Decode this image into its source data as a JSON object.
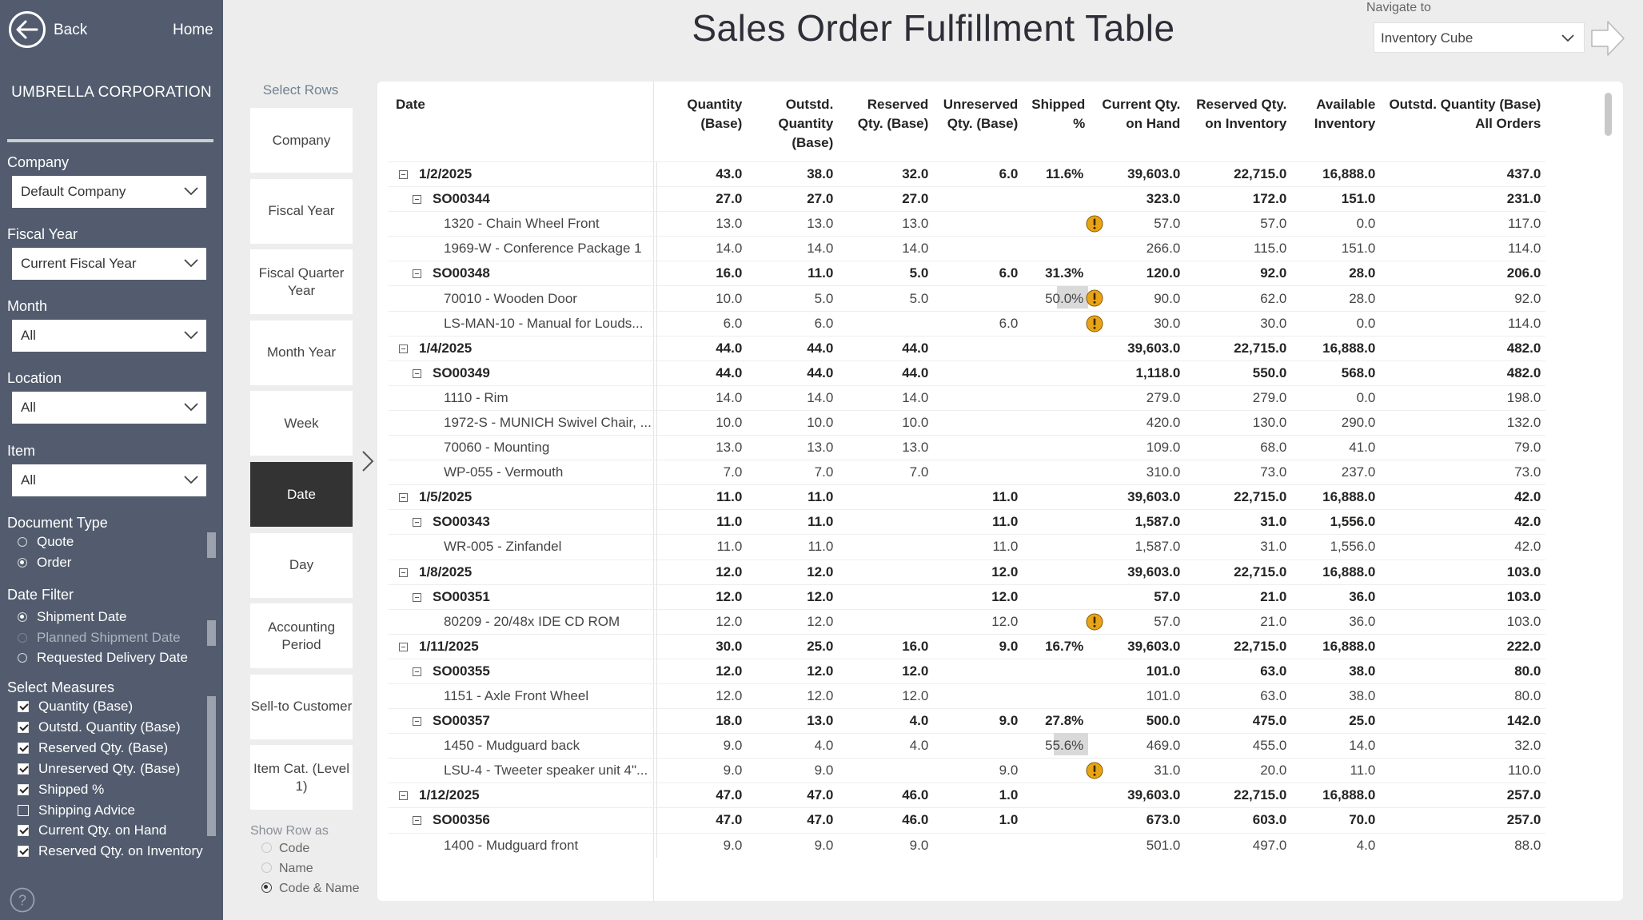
{
  "sidebar": {
    "back_label": "Back",
    "home_label": "Home",
    "company_name": "UMBRELLA CORPORATION",
    "filters": {
      "company": {
        "label": "Company",
        "value": "Default Company"
      },
      "fiscal_year": {
        "label": "Fiscal Year",
        "value": "Current Fiscal Year"
      },
      "month": {
        "label": "Month",
        "value": "All"
      },
      "location": {
        "label": "Location",
        "value": "All"
      },
      "item": {
        "label": "Item",
        "value": "All"
      }
    },
    "document_type": {
      "label": "Document Type",
      "options": [
        "Quote",
        "Order"
      ],
      "selected": "Order"
    },
    "date_filter": {
      "label": "Date Filter",
      "options": [
        "Shipment Date",
        "Planned Shipment Date",
        "Requested Delivery Date"
      ],
      "selected": "Shipment Date"
    },
    "measures": {
      "label": "Select Measures",
      "items": [
        {
          "label": "Quantity (Base)",
          "checked": true
        },
        {
          "label": "Outstd. Quantity (Base)",
          "checked": true
        },
        {
          "label": "Reserved Qty. (Base)",
          "checked": true
        },
        {
          "label": "Unreserved Qty. (Base)",
          "checked": true
        },
        {
          "label": "Shipped %",
          "checked": true
        },
        {
          "label": "Shipping Advice",
          "checked": false
        },
        {
          "label": "Current Qty. on Hand",
          "checked": true
        },
        {
          "label": "Reserved Qty. on Inventory",
          "checked": true
        }
      ]
    }
  },
  "header": {
    "title": "Sales Order Fulfillment Table",
    "navigate_label": "Navigate to",
    "navigate_value": "Inventory Cube"
  },
  "row_selector": {
    "label": "Select Rows",
    "buttons": [
      "Company",
      "Fiscal Year",
      "Fiscal Quarter Year",
      "Month Year",
      "Week",
      "Date",
      "Day",
      "Accounting Period",
      "Sell-to Customer",
      "Item Cat. (Level 1)"
    ],
    "active": "Date",
    "show_row_as": {
      "label": "Show Row as",
      "options": [
        "Code",
        "Name",
        "Code & Name"
      ],
      "selected": "Code & Name"
    }
  },
  "table": {
    "columns": [
      "Date",
      "Quantity (Base)",
      "Outstd. Quantity (Base)",
      "Reserved Qty. (Base)",
      "Unreserved Qty. (Base)",
      "Shipped %",
      "Current Qty. on Hand",
      "Reserved Qty. on Inventory",
      "Available Inventory",
      "Outstd. Quantity (Base) All Orders"
    ],
    "rows": [
      {
        "level": 0,
        "label": "1/2/2025",
        "qty": "43.0",
        "outstd": "38.0",
        "reserved": "32.0",
        "unreserved": "6.0",
        "shipped": "11.6%",
        "shipped_pct": 11.6,
        "warn": false,
        "on_hand": "39,603.0",
        "res_inv": "22,715.0",
        "avail": "16,888.0",
        "all_orders": "437.0"
      },
      {
        "level": 1,
        "label": "SO00344",
        "qty": "27.0",
        "outstd": "27.0",
        "reserved": "27.0",
        "unreserved": "",
        "shipped": "",
        "shipped_pct": null,
        "warn": false,
        "on_hand": "323.0",
        "res_inv": "172.0",
        "avail": "151.0",
        "all_orders": "231.0"
      },
      {
        "level": 2,
        "label": "1320 - Chain Wheel Front",
        "qty": "13.0",
        "outstd": "13.0",
        "reserved": "13.0",
        "unreserved": "",
        "shipped": "",
        "shipped_pct": null,
        "warn": true,
        "on_hand": "57.0",
        "res_inv": "57.0",
        "avail": "0.0",
        "all_orders": "117.0"
      },
      {
        "level": 2,
        "label": "1969-W - Conference Package 1",
        "qty": "14.0",
        "outstd": "14.0",
        "reserved": "14.0",
        "unreserved": "",
        "shipped": "",
        "shipped_pct": null,
        "warn": false,
        "on_hand": "266.0",
        "res_inv": "115.0",
        "avail": "151.0",
        "all_orders": "114.0"
      },
      {
        "level": 1,
        "label": "SO00348",
        "qty": "16.0",
        "outstd": "11.0",
        "reserved": "5.0",
        "unreserved": "6.0",
        "shipped": "31.3%",
        "shipped_pct": null,
        "warn": false,
        "on_hand": "120.0",
        "res_inv": "92.0",
        "avail": "28.0",
        "all_orders": "206.0"
      },
      {
        "level": 2,
        "label": "70010 - Wooden Door",
        "qty": "10.0",
        "outstd": "5.0",
        "reserved": "5.0",
        "unreserved": "",
        "shipped": "50.0%",
        "shipped_pct": 50.0,
        "warn": true,
        "on_hand": "90.0",
        "res_inv": "62.0",
        "avail": "28.0",
        "all_orders": "92.0"
      },
      {
        "level": 2,
        "label": "LS-MAN-10 - Manual for Louds...",
        "qty": "6.0",
        "outstd": "6.0",
        "reserved": "",
        "unreserved": "6.0",
        "shipped": "",
        "shipped_pct": null,
        "warn": true,
        "on_hand": "30.0",
        "res_inv": "30.0",
        "avail": "0.0",
        "all_orders": "114.0"
      },
      {
        "level": 0,
        "label": "1/4/2025",
        "qty": "44.0",
        "outstd": "44.0",
        "reserved": "44.0",
        "unreserved": "",
        "shipped": "",
        "shipped_pct": null,
        "warn": false,
        "on_hand": "39,603.0",
        "res_inv": "22,715.0",
        "avail": "16,888.0",
        "all_orders": "482.0"
      },
      {
        "level": 1,
        "label": "SO00349",
        "qty": "44.0",
        "outstd": "44.0",
        "reserved": "44.0",
        "unreserved": "",
        "shipped": "",
        "shipped_pct": null,
        "warn": false,
        "on_hand": "1,118.0",
        "res_inv": "550.0",
        "avail": "568.0",
        "all_orders": "482.0"
      },
      {
        "level": 2,
        "label": "1110 - Rim",
        "qty": "14.0",
        "outstd": "14.0",
        "reserved": "14.0",
        "unreserved": "",
        "shipped": "",
        "shipped_pct": null,
        "warn": false,
        "on_hand": "279.0",
        "res_inv": "279.0",
        "avail": "0.0",
        "all_orders": "198.0"
      },
      {
        "level": 2,
        "label": "1972-S - MUNICH Swivel Chair, ...",
        "qty": "10.0",
        "outstd": "10.0",
        "reserved": "10.0",
        "unreserved": "",
        "shipped": "",
        "shipped_pct": null,
        "warn": false,
        "on_hand": "420.0",
        "res_inv": "130.0",
        "avail": "290.0",
        "all_orders": "132.0"
      },
      {
        "level": 2,
        "label": "70060 - Mounting",
        "qty": "13.0",
        "outstd": "13.0",
        "reserved": "13.0",
        "unreserved": "",
        "shipped": "",
        "shipped_pct": null,
        "warn": false,
        "on_hand": "109.0",
        "res_inv": "68.0",
        "avail": "41.0",
        "all_orders": "79.0"
      },
      {
        "level": 2,
        "label": "WP-055 - Vermouth",
        "qty": "7.0",
        "outstd": "7.0",
        "reserved": "7.0",
        "unreserved": "",
        "shipped": "",
        "shipped_pct": null,
        "warn": false,
        "on_hand": "310.0",
        "res_inv": "73.0",
        "avail": "237.0",
        "all_orders": "73.0"
      },
      {
        "level": 0,
        "label": "1/5/2025",
        "qty": "11.0",
        "outstd": "11.0",
        "reserved": "",
        "unreserved": "11.0",
        "shipped": "",
        "shipped_pct": null,
        "warn": false,
        "on_hand": "39,603.0",
        "res_inv": "22,715.0",
        "avail": "16,888.0",
        "all_orders": "42.0"
      },
      {
        "level": 1,
        "label": "SO00343",
        "qty": "11.0",
        "outstd": "11.0",
        "reserved": "",
        "unreserved": "11.0",
        "shipped": "",
        "shipped_pct": null,
        "warn": false,
        "on_hand": "1,587.0",
        "res_inv": "31.0",
        "avail": "1,556.0",
        "all_orders": "42.0"
      },
      {
        "level": 2,
        "label": "WR-005 - Zinfandel",
        "qty": "11.0",
        "outstd": "11.0",
        "reserved": "",
        "unreserved": "11.0",
        "shipped": "",
        "shipped_pct": null,
        "warn": false,
        "on_hand": "1,587.0",
        "res_inv": "31.0",
        "avail": "1,556.0",
        "all_orders": "42.0"
      },
      {
        "level": 0,
        "label": "1/8/2025",
        "qty": "12.0",
        "outstd": "12.0",
        "reserved": "",
        "unreserved": "12.0",
        "shipped": "",
        "shipped_pct": null,
        "warn": false,
        "on_hand": "39,603.0",
        "res_inv": "22,715.0",
        "avail": "16,888.0",
        "all_orders": "103.0"
      },
      {
        "level": 1,
        "label": "SO00351",
        "qty": "12.0",
        "outstd": "12.0",
        "reserved": "",
        "unreserved": "12.0",
        "shipped": "",
        "shipped_pct": null,
        "warn": false,
        "on_hand": "57.0",
        "res_inv": "21.0",
        "avail": "36.0",
        "all_orders": "103.0"
      },
      {
        "level": 2,
        "label": "80209 - 20/48x IDE CD ROM",
        "qty": "12.0",
        "outstd": "12.0",
        "reserved": "",
        "unreserved": "12.0",
        "shipped": "",
        "shipped_pct": null,
        "warn": true,
        "on_hand": "57.0",
        "res_inv": "21.0",
        "avail": "36.0",
        "all_orders": "103.0"
      },
      {
        "level": 0,
        "label": "1/11/2025",
        "qty": "30.0",
        "outstd": "25.0",
        "reserved": "16.0",
        "unreserved": "9.0",
        "shipped": "16.7%",
        "shipped_pct": null,
        "warn": false,
        "on_hand": "39,603.0",
        "res_inv": "22,715.0",
        "avail": "16,888.0",
        "all_orders": "222.0"
      },
      {
        "level": 1,
        "label": "SO00355",
        "qty": "12.0",
        "outstd": "12.0",
        "reserved": "12.0",
        "unreserved": "",
        "shipped": "",
        "shipped_pct": null,
        "warn": false,
        "on_hand": "101.0",
        "res_inv": "63.0",
        "avail": "38.0",
        "all_orders": "80.0"
      },
      {
        "level": 2,
        "label": "1151 - Axle Front Wheel",
        "qty": "12.0",
        "outstd": "12.0",
        "reserved": "12.0",
        "unreserved": "",
        "shipped": "",
        "shipped_pct": null,
        "warn": false,
        "on_hand": "101.0",
        "res_inv": "63.0",
        "avail": "38.0",
        "all_orders": "80.0"
      },
      {
        "level": 1,
        "label": "SO00357",
        "qty": "18.0",
        "outstd": "13.0",
        "reserved": "4.0",
        "unreserved": "9.0",
        "shipped": "27.8%",
        "shipped_pct": null,
        "warn": false,
        "on_hand": "500.0",
        "res_inv": "475.0",
        "avail": "25.0",
        "all_orders": "142.0"
      },
      {
        "level": 2,
        "label": "1450 - Mudguard back",
        "qty": "9.0",
        "outstd": "4.0",
        "reserved": "4.0",
        "unreserved": "",
        "shipped": "55.6%",
        "shipped_pct": 55.6,
        "warn": false,
        "on_hand": "469.0",
        "res_inv": "455.0",
        "avail": "14.0",
        "all_orders": "32.0"
      },
      {
        "level": 2,
        "label": "LSU-4 - Tweeter speaker unit 4\"...",
        "qty": "9.0",
        "outstd": "9.0",
        "reserved": "",
        "unreserved": "9.0",
        "shipped": "",
        "shipped_pct": null,
        "warn": true,
        "on_hand": "31.0",
        "res_inv": "20.0",
        "avail": "11.0",
        "all_orders": "110.0"
      },
      {
        "level": 0,
        "label": "1/12/2025",
        "qty": "47.0",
        "outstd": "47.0",
        "reserved": "46.0",
        "unreserved": "1.0",
        "shipped": "",
        "shipped_pct": null,
        "warn": false,
        "on_hand": "39,603.0",
        "res_inv": "22,715.0",
        "avail": "16,888.0",
        "all_orders": "257.0"
      },
      {
        "level": 1,
        "label": "SO00356",
        "qty": "47.0",
        "outstd": "47.0",
        "reserved": "46.0",
        "unreserved": "1.0",
        "shipped": "",
        "shipped_pct": null,
        "warn": false,
        "on_hand": "673.0",
        "res_inv": "603.0",
        "avail": "70.0",
        "all_orders": "257.0"
      },
      {
        "level": 2,
        "label": "1400 - Mudguard front",
        "qty": "9.0",
        "outstd": "9.0",
        "reserved": "9.0",
        "unreserved": "",
        "shipped": "",
        "shipped_pct": null,
        "warn": false,
        "on_hand": "501.0",
        "res_inv": "497.0",
        "avail": "4.0",
        "all_orders": "88.0"
      }
    ]
  },
  "colors": {
    "sidebar_bg": "#525c6e",
    "warning": "#e8a317",
    "active_button": "#333333"
  }
}
